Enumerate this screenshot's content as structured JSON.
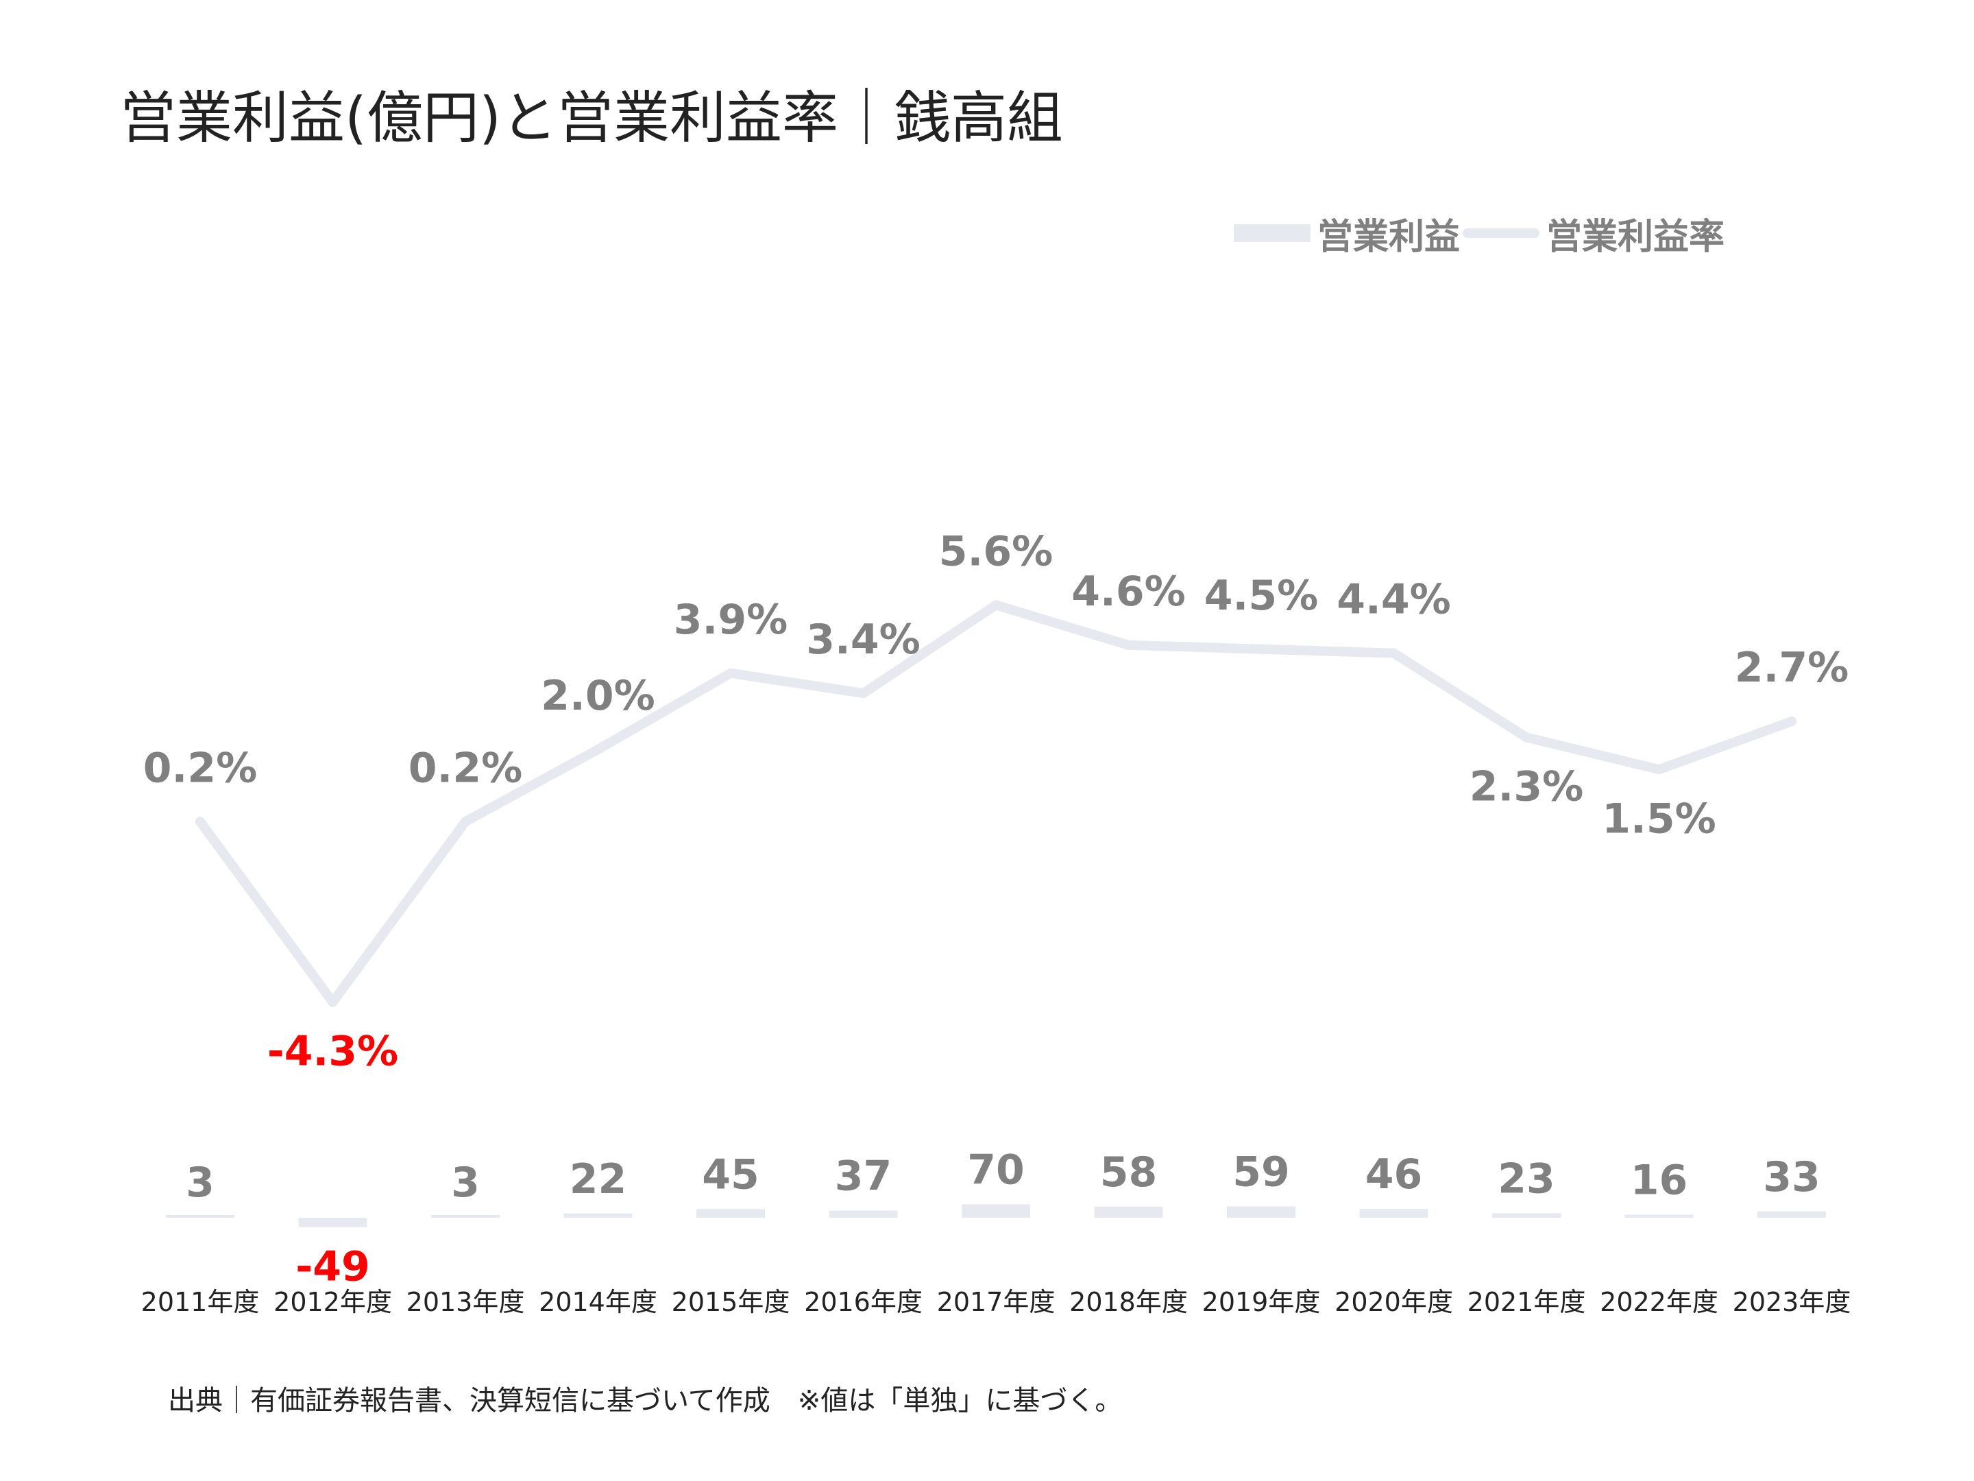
{
  "chart_data": {
    "type": "bar+line",
    "title": "営業利益(億円)と営業利益率｜銭高組",
    "categories": [
      "2011年度",
      "2012年度",
      "2013年度",
      "2014年度",
      "2015年度",
      "2016年度",
      "2017年度",
      "2018年度",
      "2019年度",
      "2020年度",
      "2021年度",
      "2022年度",
      "2023年度"
    ],
    "series": [
      {
        "name": "営業利益",
        "type": "bar",
        "values": [
          3,
          -49,
          3,
          22,
          45,
          37,
          70,
          58,
          59,
          46,
          23,
          16,
          33
        ],
        "labels": [
          "3",
          "-49",
          "3",
          "22",
          "45",
          "37",
          "70",
          "58",
          "59",
          "46",
          "23",
          "16",
          "33"
        ]
      },
      {
        "name": "営業利益率",
        "type": "line",
        "values": [
          0.2,
          -4.3,
          0.2,
          2.0,
          3.9,
          3.4,
          5.6,
          4.6,
          4.5,
          4.4,
          2.3,
          1.5,
          2.7
        ],
        "labels": [
          "0.2%",
          "-4.3%",
          "0.2%",
          "2.0%",
          "3.9%",
          "3.4%",
          "5.6%",
          "4.6%",
          "4.5%",
          "4.4%",
          "2.3%",
          "1.5%",
          "2.7%"
        ]
      }
    ],
    "legend": "top-right",
    "grid": false,
    "colors": {
      "bar": "#e6e9ef",
      "line": "#e6e9ef",
      "label": "#808080",
      "negative_label": "#ff0000",
      "text": "#222222"
    }
  },
  "footer": {
    "source": "出典｜有価証券報告書、決算短信に基づいて作成　※値は「単独」に基づく。"
  }
}
